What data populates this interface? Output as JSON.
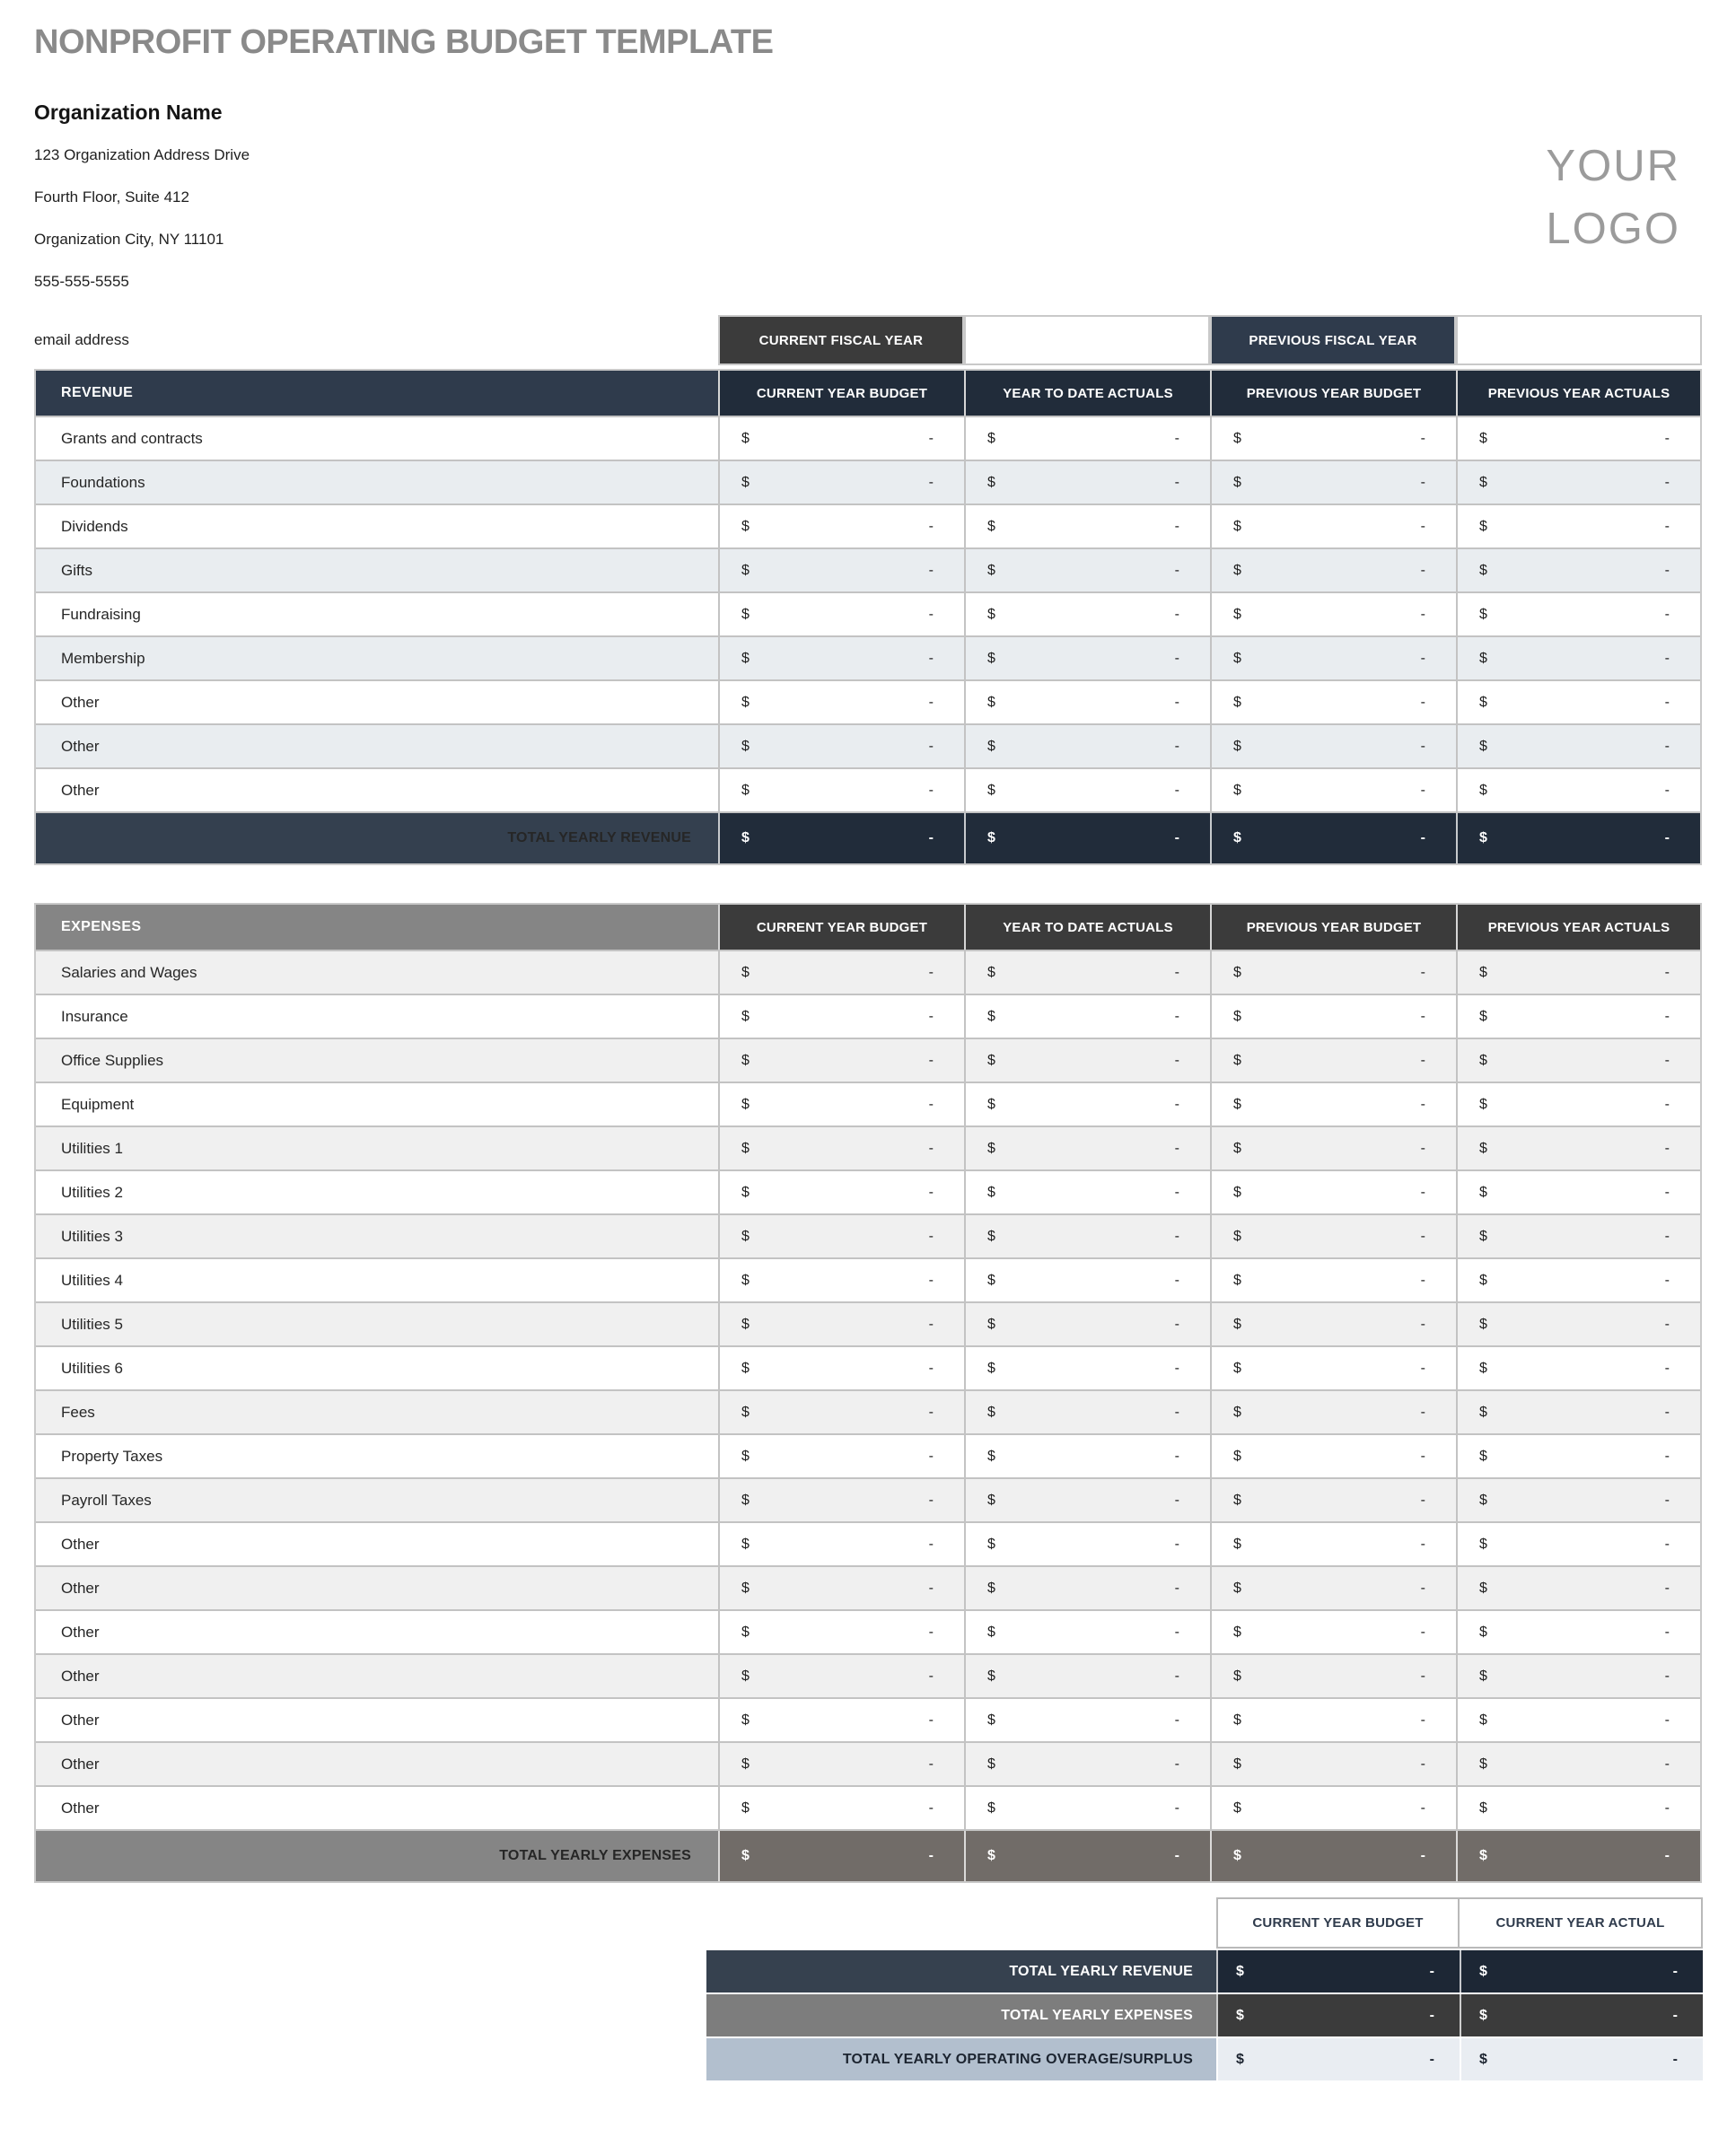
{
  "page": {
    "title": "NONPROFIT OPERATING BUDGET TEMPLATE"
  },
  "organization": {
    "name": "Organization Name",
    "address_line1": "123 Organization Address Drive",
    "address_line2": "Fourth Floor, Suite 412",
    "address_line3": "Organization City, NY  11101",
    "phone": "555-555-5555",
    "email_label": "email address"
  },
  "logo": {
    "line1": "YOUR",
    "line2": "LOGO"
  },
  "fiscal_year_bar": {
    "current_label": "CURRENT FISCAL YEAR",
    "current_value": "",
    "previous_label": "PREVIOUS FISCAL YEAR",
    "previous_value": ""
  },
  "currency": "$",
  "revenue_table": {
    "section_label": "REVENUE",
    "columns": [
      "CURRENT YEAR BUDGET",
      "YEAR TO DATE ACTUALS",
      "PREVIOUS YEAR BUDGET",
      "PREVIOUS YEAR ACTUALS"
    ],
    "rows": [
      {
        "label": "Grants and contracts",
        "values": [
          "-",
          "-",
          "-",
          "-"
        ]
      },
      {
        "label": "Foundations",
        "values": [
          "-",
          "-",
          "-",
          "-"
        ]
      },
      {
        "label": "Dividends",
        "values": [
          "-",
          "-",
          "-",
          "-"
        ]
      },
      {
        "label": "Gifts",
        "values": [
          "-",
          "-",
          "-",
          "-"
        ]
      },
      {
        "label": "Fundraising",
        "values": [
          "-",
          "-",
          "-",
          "-"
        ]
      },
      {
        "label": "Membership",
        "values": [
          "-",
          "-",
          "-",
          "-"
        ]
      },
      {
        "label": "Other",
        "values": [
          "-",
          "-",
          "-",
          "-"
        ]
      },
      {
        "label": "Other",
        "values": [
          "-",
          "-",
          "-",
          "-"
        ]
      },
      {
        "label": "Other",
        "values": [
          "-",
          "-",
          "-",
          "-"
        ]
      }
    ],
    "total_label": "TOTAL YEARLY REVENUE",
    "total_values": [
      "-",
      "-",
      "-",
      "-"
    ]
  },
  "expenses_table": {
    "section_label": "EXPENSES",
    "columns": [
      "CURRENT YEAR BUDGET",
      "YEAR TO DATE ACTUALS",
      "PREVIOUS YEAR BUDGET",
      "PREVIOUS YEAR ACTUALS"
    ],
    "rows": [
      {
        "label": "Salaries and Wages",
        "values": [
          "-",
          "-",
          "-",
          "-"
        ]
      },
      {
        "label": "Insurance",
        "values": [
          "-",
          "-",
          "-",
          "-"
        ]
      },
      {
        "label": "Office Supplies",
        "values": [
          "-",
          "-",
          "-",
          "-"
        ]
      },
      {
        "label": "Equipment",
        "values": [
          "-",
          "-",
          "-",
          "-"
        ]
      },
      {
        "label": "Utilities 1",
        "values": [
          "-",
          "-",
          "-",
          "-"
        ]
      },
      {
        "label": "Utilities 2",
        "values": [
          "-",
          "-",
          "-",
          "-"
        ]
      },
      {
        "label": "Utilities 3",
        "values": [
          "-",
          "-",
          "-",
          "-"
        ]
      },
      {
        "label": "Utilities 4",
        "values": [
          "-",
          "-",
          "-",
          "-"
        ]
      },
      {
        "label": "Utilities 5",
        "values": [
          "-",
          "-",
          "-",
          "-"
        ]
      },
      {
        "label": "Utilities 6",
        "values": [
          "-",
          "-",
          "-",
          "-"
        ]
      },
      {
        "label": "Fees",
        "values": [
          "-",
          "-",
          "-",
          "-"
        ]
      },
      {
        "label": "Property Taxes",
        "values": [
          "-",
          "-",
          "-",
          "-"
        ]
      },
      {
        "label": "Payroll Taxes",
        "values": [
          "-",
          "-",
          "-",
          "-"
        ]
      },
      {
        "label": "Other",
        "values": [
          "-",
          "-",
          "-",
          "-"
        ]
      },
      {
        "label": "Other",
        "values": [
          "-",
          "-",
          "-",
          "-"
        ]
      },
      {
        "label": "Other",
        "values": [
          "-",
          "-",
          "-",
          "-"
        ]
      },
      {
        "label": "Other",
        "values": [
          "-",
          "-",
          "-",
          "-"
        ]
      },
      {
        "label": "Other",
        "values": [
          "-",
          "-",
          "-",
          "-"
        ]
      },
      {
        "label": "Other",
        "values": [
          "-",
          "-",
          "-",
          "-"
        ]
      },
      {
        "label": "Other",
        "values": [
          "-",
          "-",
          "-",
          "-"
        ]
      }
    ],
    "total_label": "TOTAL YEARLY EXPENSES",
    "total_values": [
      "-",
      "-",
      "-",
      "-"
    ]
  },
  "summary_table": {
    "columns": [
      "CURRENT YEAR BUDGET",
      "CURRENT YEAR ACTUAL"
    ],
    "rows": [
      {
        "label": "TOTAL YEARLY REVENUE",
        "values": [
          "-",
          "-"
        ]
      },
      {
        "label": "TOTAL YEARLY EXPENSES",
        "values": [
          "-",
          "-"
        ]
      },
      {
        "label": "TOTAL YEARLY OPERATING OVERAGE/SURPLUS",
        "values": [
          "-",
          "-"
        ]
      }
    ]
  },
  "colors": {
    "slate": "#2f3b4c",
    "slate_dark": "#212c3a",
    "charcoal": "#3b3b3b",
    "gray_mid": "#858585",
    "gray_dark": "#716c68",
    "blue_light": "#b2bfce",
    "zebra_revenue": "#e9edf0",
    "zebra_expenses": "#f0f0f0",
    "title_gray": "#8a8a8a"
  }
}
